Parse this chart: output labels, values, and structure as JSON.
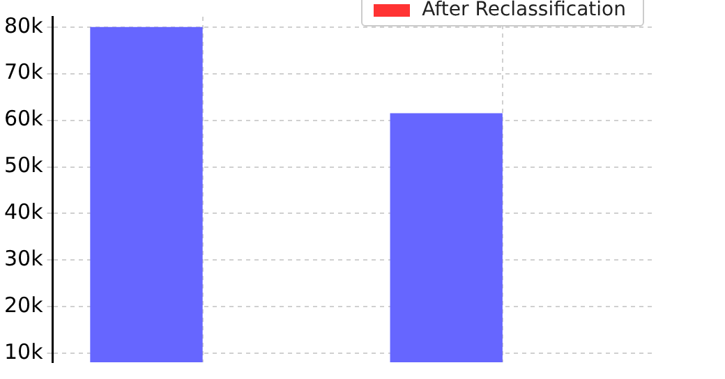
{
  "chart_data": {
    "type": "bar",
    "categories": [
      null,
      null
    ],
    "series": [
      {
        "color": "#6666ff",
        "values": [
          80000,
          61500
        ]
      },
      {
        "name": "After Reclassification",
        "color": "#ff3333",
        "values": [
          null,
          null
        ]
      }
    ],
    "ylim": [
      8100,
      82200
    ],
    "yticks": [
      {
        "value": 10000,
        "label": "10k"
      },
      {
        "value": 20000,
        "label": "20k"
      },
      {
        "value": 30000,
        "label": "30k"
      },
      {
        "value": 40000,
        "label": "40k"
      },
      {
        "value": 50000,
        "label": "50k"
      },
      {
        "value": 60000,
        "label": "60k"
      },
      {
        "value": 70000,
        "label": "70k"
      },
      {
        "value": 80000,
        "label": "80k"
      }
    ],
    "grid": true,
    "legend": "top right",
    "tick_labels": "y"
  }
}
